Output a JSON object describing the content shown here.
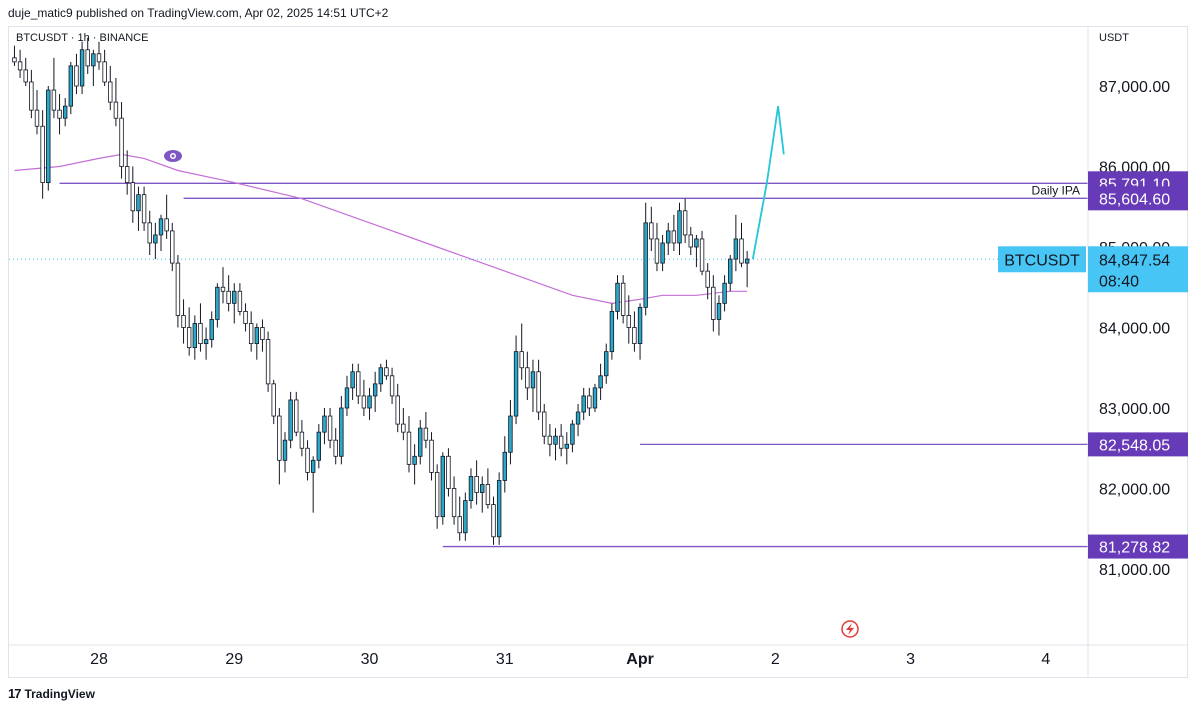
{
  "header": {
    "text": "duje_matic9 published on TradingView.com, Apr 02, 2025 14:51 UTC+2"
  },
  "footer": {
    "brand": "TradingView",
    "logo_glyph": "17"
  },
  "colors": {
    "bull": "#2aa7c9",
    "bear": "#ffffff",
    "wick": "#131722",
    "level": "#7e57c2",
    "level_label_bg": "#673ab7",
    "ma": "#c56fd6",
    "projection": "#26c6da",
    "price_tag": "#47c6f5"
  },
  "chart_data": {
    "type": "candlestick",
    "symbol_label": "BTCUSDT · 1h · BINANCE",
    "currency": "USDT",
    "x_ticks": [
      {
        "label": "28",
        "t": 0
      },
      {
        "label": "29",
        "t": 24
      },
      {
        "label": "30",
        "t": 48
      },
      {
        "label": "31",
        "t": 72
      },
      {
        "label": "Apr",
        "t": 96
      },
      {
        "label": "2",
        "t": 120
      },
      {
        "label": "3",
        "t": 144
      },
      {
        "label": "4",
        "t": 168
      }
    ],
    "y_ticks": [
      87000,
      86000,
      85000,
      84000,
      83000,
      82000,
      81000
    ],
    "y_tick_labels": [
      "87,000.00",
      "86,000.00",
      "85,000.00",
      "84,000.00",
      "83,000.00",
      "82,000.00",
      "81,000.00"
    ],
    "ylim": [
      80200,
      87800
    ],
    "x_unit": "hours from Mar 28 00:00 (UTC+2)",
    "candles": [
      [
        -15,
        87350,
        87500,
        87250,
        87300
      ],
      [
        -14,
        87300,
        87450,
        87100,
        87200
      ],
      [
        -13,
        87200,
        87350,
        87000,
        87050
      ],
      [
        -12,
        87050,
        87200,
        86600,
        86700
      ],
      [
        -11,
        86700,
        86950,
        86400,
        86500
      ],
      [
        -10,
        86500,
        86700,
        85600,
        85800
      ],
      [
        -9,
        85800,
        87000,
        85700,
        86950
      ],
      [
        -8,
        86950,
        87350,
        86600,
        86700
      ],
      [
        -7,
        86700,
        86900,
        86400,
        86600
      ],
      [
        -6,
        86600,
        86850,
        86500,
        86750
      ],
      [
        -5,
        86750,
        87300,
        86650,
        87250
      ],
      [
        -4,
        87250,
        87400,
        86900,
        87000
      ],
      [
        -3,
        87000,
        87550,
        86900,
        87450
      ],
      [
        -2,
        87450,
        87600,
        87150,
        87250
      ],
      [
        -1,
        87250,
        87450,
        87000,
        87400
      ],
      [
        0,
        87400,
        87550,
        87200,
        87300
      ],
      [
        1,
        87300,
        87450,
        87000,
        87050
      ],
      [
        2,
        87050,
        87250,
        86700,
        86800
      ],
      [
        3,
        86800,
        87100,
        86500,
        86600
      ],
      [
        4,
        86600,
        86800,
        85850,
        86000
      ],
      [
        5,
        86000,
        86200,
        85650,
        85800
      ],
      [
        6,
        85800,
        86000,
        85300,
        85450
      ],
      [
        7,
        85450,
        85750,
        85200,
        85650
      ],
      [
        8,
        85650,
        85750,
        85200,
        85300
      ],
      [
        9,
        85300,
        85450,
        84900,
        85050
      ],
      [
        10,
        85050,
        85300,
        84850,
        85150
      ],
      [
        11,
        85150,
        85400,
        84950,
        85350
      ],
      [
        12,
        85350,
        85650,
        85100,
        85200
      ],
      [
        13,
        85200,
        85300,
        84700,
        84800
      ],
      [
        14,
        84800,
        84900,
        84000,
        84150
      ],
      [
        15,
        84150,
        84350,
        83800,
        84000
      ],
      [
        16,
        84000,
        84250,
        83650,
        83750
      ],
      [
        17,
        83750,
        84150,
        83600,
        84050
      ],
      [
        18,
        84050,
        84300,
        83700,
        83800
      ],
      [
        19,
        83800,
        84000,
        83600,
        83850
      ],
      [
        20,
        83850,
        84200,
        83750,
        84100
      ],
      [
        21,
        84100,
        84550,
        84000,
        84500
      ],
      [
        22,
        84500,
        84750,
        84300,
        84450
      ],
      [
        23,
        84450,
        84650,
        84200,
        84300
      ],
      [
        24,
        84300,
        84550,
        84050,
        84450
      ],
      [
        25,
        84450,
        84550,
        84150,
        84200
      ],
      [
        26,
        84200,
        84300,
        83950,
        84050
      ],
      [
        27,
        84050,
        84200,
        83700,
        83800
      ],
      [
        28,
        83800,
        84050,
        83600,
        84000
      ],
      [
        29,
        84000,
        84100,
        83700,
        83850
      ],
      [
        30,
        83850,
        83950,
        83200,
        83300
      ],
      [
        31,
        83300,
        83350,
        82800,
        82900
      ],
      [
        32,
        82900,
        83000,
        82050,
        82350
      ],
      [
        33,
        82350,
        82700,
        82200,
        82600
      ],
      [
        34,
        82600,
        83200,
        82500,
        83100
      ],
      [
        35,
        83100,
        83200,
        82650,
        82700
      ],
      [
        36,
        82700,
        82850,
        82400,
        82500
      ],
      [
        37,
        82500,
        82600,
        82100,
        82200
      ],
      [
        38,
        82200,
        82400,
        81700,
        82350
      ],
      [
        39,
        82350,
        82800,
        82250,
        82700
      ],
      [
        40,
        82700,
        83000,
        82550,
        82900
      ],
      [
        41,
        82900,
        83000,
        82500,
        82600
      ],
      [
        42,
        82600,
        82750,
        82300,
        82400
      ],
      [
        43,
        82400,
        83150,
        82300,
        83000
      ],
      [
        44,
        83000,
        83400,
        82900,
        83250
      ],
      [
        45,
        83250,
        83550,
        83100,
        83450
      ],
      [
        46,
        83450,
        83550,
        83050,
        83150
      ],
      [
        47,
        83150,
        83350,
        82900,
        83000
      ],
      [
        48,
        83000,
        83250,
        82850,
        83150
      ],
      [
        49,
        83150,
        83450,
        82950,
        83300
      ],
      [
        50,
        83300,
        83550,
        83200,
        83500
      ],
      [
        51,
        83500,
        83600,
        83350,
        83400
      ],
      [
        52,
        83400,
        83500,
        83050,
        83150
      ],
      [
        53,
        83150,
        83300,
        82700,
        82800
      ],
      [
        54,
        82800,
        83000,
        82600,
        82700
      ],
      [
        55,
        82700,
        82900,
        82200,
        82300
      ],
      [
        56,
        82300,
        82550,
        82050,
        82400
      ],
      [
        57,
        82400,
        82850,
        82300,
        82750
      ],
      [
        58,
        82750,
        82950,
        82500,
        82600
      ],
      [
        59,
        82600,
        82700,
        82100,
        82200
      ],
      [
        60,
        82200,
        82300,
        81500,
        81650
      ],
      [
        61,
        81650,
        82450,
        81550,
        82400
      ],
      [
        62,
        82400,
        82500,
        81900,
        82000
      ],
      [
        63,
        82000,
        82150,
        81550,
        81650
      ],
      [
        64,
        81650,
        81900,
        81350,
        81450
      ],
      [
        65,
        81450,
        81950,
        81350,
        81850
      ],
      [
        66,
        81850,
        82250,
        81750,
        82150
      ],
      [
        67,
        82150,
        82350,
        81800,
        81950
      ],
      [
        68,
        81950,
        82150,
        81700,
        82050
      ],
      [
        69,
        82050,
        82250,
        81750,
        81800
      ],
      [
        70,
        81800,
        81900,
        81300,
        81400
      ],
      [
        71,
        81400,
        82200,
        81300,
        82100
      ],
      [
        72,
        82100,
        82650,
        81950,
        82450
      ],
      [
        73,
        82450,
        83100,
        82300,
        82900
      ],
      [
        74,
        82900,
        83900,
        82800,
        83700
      ],
      [
        75,
        83700,
        84050,
        83350,
        83500
      ],
      [
        76,
        83500,
        83700,
        83100,
        83250
      ],
      [
        77,
        83250,
        83600,
        82950,
        83450
      ],
      [
        78,
        83450,
        83600,
        82850,
        82950
      ],
      [
        79,
        82950,
        83050,
        82550,
        82650
      ],
      [
        80,
        82650,
        82800,
        82400,
        82550
      ],
      [
        81,
        82550,
        82750,
        82350,
        82650
      ],
      [
        82,
        82650,
        82800,
        82400,
        82500
      ],
      [
        83,
        82500,
        82700,
        82300,
        82550
      ],
      [
        84,
        82550,
        82850,
        82450,
        82800
      ],
      [
        85,
        82800,
        83050,
        82650,
        82950
      ],
      [
        86,
        82950,
        83250,
        82850,
        83150
      ],
      [
        87,
        83150,
        83250,
        82900,
        83000
      ],
      [
        88,
        83000,
        83300,
        82950,
        83250
      ],
      [
        89,
        83250,
        83550,
        83100,
        83400
      ],
      [
        90,
        83400,
        83800,
        83300,
        83700
      ],
      [
        91,
        83700,
        84300,
        83600,
        84200
      ],
      [
        92,
        84200,
        84650,
        84100,
        84550
      ],
      [
        93,
        84550,
        84650,
        84050,
        84150
      ],
      [
        94,
        84150,
        84400,
        83800,
        84000
      ],
      [
        95,
        84000,
        84200,
        83700,
        83800
      ],
      [
        96,
        83800,
        84300,
        83600,
        84250
      ],
      [
        97,
        84250,
        85550,
        84150,
        85300
      ],
      [
        98,
        85300,
        85500,
        84950,
        85100
      ],
      [
        99,
        85100,
        85300,
        84700,
        84800
      ],
      [
        100,
        84800,
        85150,
        84700,
        85050
      ],
      [
        101,
        85050,
        85300,
        84900,
        85200
      ],
      [
        102,
        85200,
        85400,
        84950,
        85050
      ],
      [
        103,
        85050,
        85550,
        84900,
        85450
      ],
      [
        104,
        85450,
        85600,
        85050,
        85150
      ],
      [
        105,
        85150,
        85250,
        84900,
        85000
      ],
      [
        106,
        85000,
        85150,
        84750,
        85100
      ],
      [
        107,
        85100,
        85200,
        84650,
        84700
      ],
      [
        108,
        84700,
        84800,
        84350,
        84500
      ],
      [
        109,
        84500,
        84650,
        83950,
        84100
      ],
      [
        110,
        84100,
        84400,
        83900,
        84300
      ],
      [
        111,
        84300,
        84650,
        84200,
        84550
      ],
      [
        112,
        84550,
        84900,
        84450,
        84850
      ],
      [
        113,
        84850,
        85400,
        84700,
        85100
      ],
      [
        114,
        85100,
        85300,
        84750,
        84800
      ],
      [
        115,
        84800,
        84950,
        84500,
        84850
      ]
    ],
    "moving_average": [
      [
        -15,
        85950
      ],
      [
        -7,
        86000
      ],
      [
        0,
        86100
      ],
      [
        4,
        86150
      ],
      [
        8,
        86100
      ],
      [
        14,
        85950
      ],
      [
        24,
        85800
      ],
      [
        36,
        85600
      ],
      [
        48,
        85300
      ],
      [
        60,
        85000
      ],
      [
        72,
        84700
      ],
      [
        84,
        84400
      ],
      [
        91,
        84300
      ],
      [
        96,
        84350
      ],
      [
        100,
        84400
      ],
      [
        106,
        84400
      ],
      [
        112,
        84450
      ],
      [
        115,
        84450
      ]
    ],
    "levels": [
      {
        "label": "85,791.10",
        "value": 85791.1,
        "t_start": -7,
        "note": ""
      },
      {
        "label": "85,604.60",
        "value": 85604.6,
        "t_start": 15,
        "note": "Daily IPA"
      },
      {
        "label": "82,548.05",
        "value": 82548.05,
        "t_start": 96,
        "note": ""
      },
      {
        "label": "81,278.82",
        "value": 81278.82,
        "t_start": 61,
        "note": ""
      }
    ],
    "current_price": {
      "symbol": "BTCUSDT",
      "value": 84847.54,
      "label": "84,847.54",
      "countdown": "08:40"
    },
    "projection": [
      [
        116,
        84850
      ],
      [
        118.5,
        85800
      ],
      [
        120.5,
        86750
      ],
      [
        121.5,
        86150
      ]
    ]
  }
}
